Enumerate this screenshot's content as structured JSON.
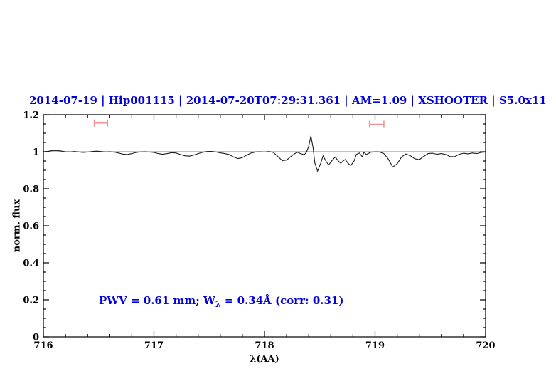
{
  "header": {
    "segments": [
      "2014-07-19",
      "Hip001115",
      "2014-07-20T07:29:31.361",
      "AM=1.09",
      "XSHOOTER",
      "S5.0x11"
    ],
    "separator": " | ",
    "color": "#0000dd"
  },
  "annotation": {
    "prefix": "PWV = 0.61 mm; W",
    "subscript": "λ",
    "suffix": " = 0.34Å (corr: 0.31)",
    "color": "#0000dd"
  },
  "chart_data": {
    "type": "line",
    "title": "2014-07-19 | Hip001115 | 2014-07-20T07:29:31.361 | AM=1.09 | XSHOOTER | S5.0x11",
    "xlabel": "λ(AA)",
    "ylabel": "norm. flux",
    "xlim": [
      716,
      720
    ],
    "ylim": [
      0,
      1.2
    ],
    "grid": "off",
    "x_major_ticks": [
      716,
      717,
      718,
      719,
      720
    ],
    "x_tick_labels": [
      "716",
      "717",
      "718",
      "719",
      "720"
    ],
    "x_minor_step": 0.2,
    "y_major_ticks": [
      0,
      0.2,
      0.4,
      0.6,
      0.8,
      1,
      1.2
    ],
    "y_tick_labels": [
      "0",
      "0.2",
      "0.4",
      "0.6",
      "0.8",
      "1",
      "1.2"
    ],
    "y_minor_step": 0.05,
    "dotted_vlines": {
      "x": [
        717,
        719
      ],
      "color": "#555555"
    },
    "continuum_line": {
      "y": 1.0,
      "x_start": 716,
      "x_end": 720,
      "color": "#ff4d4d"
    },
    "range_markers": {
      "color": "#f29191",
      "items": [
        {
          "x_min": 716.46,
          "x_max": 716.58,
          "y": 1.155
        },
        {
          "x_min": 718.95,
          "x_max": 719.08,
          "y": 1.148
        }
      ]
    },
    "series": [
      {
        "name": "normalized-spectrum",
        "color": "#1a1a1a",
        "x": [
          716.0,
          716.04,
          716.08,
          716.12,
          716.16,
          716.2,
          716.24,
          716.28,
          716.32,
          716.36,
          716.4,
          716.44,
          716.48,
          716.52,
          716.56,
          716.6,
          716.64,
          716.68,
          716.72,
          716.76,
          716.8,
          716.84,
          716.88,
          716.92,
          716.96,
          717.0,
          717.04,
          717.08,
          717.12,
          717.16,
          717.2,
          717.24,
          717.28,
          717.32,
          717.36,
          717.4,
          717.44,
          717.48,
          717.52,
          717.56,
          717.6,
          717.64,
          717.68,
          717.72,
          717.76,
          717.8,
          717.84,
          717.88,
          717.92,
          717.96,
          718.0,
          718.04,
          718.08,
          718.12,
          718.16,
          718.2,
          718.24,
          718.28,
          718.3,
          718.33,
          718.36,
          718.38,
          718.4,
          718.42,
          718.44,
          718.455,
          718.48,
          718.51,
          718.53,
          718.555,
          718.58,
          718.61,
          718.64,
          718.665,
          718.69,
          718.71,
          718.73,
          718.755,
          718.78,
          718.81,
          718.83,
          718.86,
          718.885,
          718.9,
          718.92,
          718.96,
          719.0,
          719.04,
          719.08,
          719.12,
          719.16,
          719.2,
          719.24,
          719.28,
          719.32,
          719.36,
          719.4,
          719.44,
          719.48,
          719.52,
          719.56,
          719.6,
          719.64,
          719.68,
          719.72,
          719.76,
          719.8,
          719.84,
          719.88,
          719.92,
          719.96,
          720.0
        ],
        "y": [
          1.0,
          1.002,
          1.006,
          1.007,
          1.004,
          1.0,
          0.999,
          1.001,
          0.999,
          0.996,
          0.998,
          1.001,
          1.003,
          1.001,
          0.999,
          1.0,
          0.998,
          0.993,
          0.987,
          0.985,
          0.99,
          0.996,
          0.999,
          1.0,
          0.998,
          0.996,
          0.99,
          0.986,
          0.99,
          0.995,
          0.993,
          0.985,
          0.978,
          0.976,
          0.982,
          0.99,
          0.997,
          1.001,
          1.002,
          0.999,
          0.994,
          0.99,
          0.985,
          0.972,
          0.963,
          0.968,
          0.982,
          0.993,
          0.999,
          1.0,
          0.998,
          1.001,
          0.996,
          0.975,
          0.952,
          0.955,
          0.975,
          0.992,
          0.997,
          0.989,
          0.984,
          0.998,
          1.03,
          1.085,
          1.02,
          0.94,
          0.895,
          0.94,
          0.978,
          0.95,
          0.928,
          0.952,
          0.972,
          0.952,
          0.938,
          0.95,
          0.958,
          0.938,
          0.925,
          0.95,
          0.985,
          0.993,
          0.972,
          0.998,
          0.985,
          0.997,
          1.0,
          0.999,
          0.99,
          0.96,
          0.917,
          0.935,
          0.972,
          0.988,
          0.978,
          0.962,
          0.957,
          0.975,
          0.99,
          0.992,
          0.986,
          0.99,
          0.985,
          0.974,
          0.973,
          0.986,
          0.992,
          0.989,
          0.993,
          0.99,
          0.996,
          0.998
        ]
      }
    ],
    "annotation_text": "PWV = 0.61 mm; Wλ = 0.34Å (corr: 0.31)"
  }
}
